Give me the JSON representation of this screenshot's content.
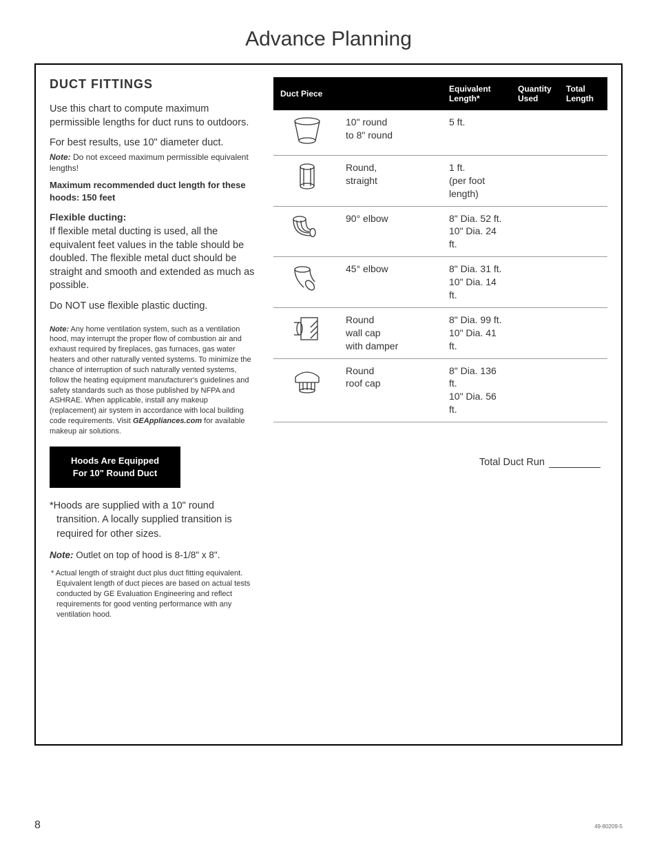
{
  "page": {
    "title": "Advance Planning",
    "number": "8",
    "doc_code": "49-80209-5"
  },
  "left": {
    "heading": "DUCT FITTINGS",
    "intro": "Use this chart to compute maximum permissible lengths for duct runs to outdoors.",
    "best": "For best results, use 10\" diameter duct.",
    "note1_label": "Note:",
    "note1": " Do not exceed maximum permissible equivalent lengths!",
    "max_rec": "Maximum recommended duct length for these hoods: 150 feet",
    "flex_heading": "Flexible ducting:",
    "flex_body": "If flexible metal ducting is used, all the equivalent feet values in the table should be doubled. The flexible metal duct should be straight and smooth and extended as much as possible.",
    "no_plastic": "Do NOT use flexible plastic ducting.",
    "long_note_label": "Note:",
    "long_note": " Any home ventilation system, such as a ventilation hood, may interrupt the proper flow of combustion air and exhaust required by fireplaces, gas furnaces, gas water heaters and other naturally vented systems. To minimize the chance of interruption of such naturally vented systems, follow the heating equipment manufacturer's guidelines and safety standards such as those published by NFPA and ASHRAE. When applicable, install any makeup (replacement) air system in accordance with local building code requirements. Visit ",
    "long_note_site": "GEAppliances.com",
    "long_note_tail": " for available makeup air solutions.",
    "black_box_l1": "Hoods Are Equipped",
    "black_box_l2": "For 10\" Round Duct",
    "supplied": "*Hoods are supplied with a 10\" round transition. A locally supplied transition is required for other sizes.",
    "outlet_label": "Note:",
    "outlet": " Outlet on top of hood is 8-1/8\" x 8\".",
    "footnote": "* Actual length of straight duct plus duct fitting equivalent. Equivalent length of duct pieces are based on actual tests conducted by GE Evaluation Engineering and reflect requirements for good venting performance with any ventilation hood."
  },
  "table": {
    "headers": {
      "piece": "Duct Piece",
      "desc": "",
      "equiv": "Equivalent Length*",
      "qty": "Quantity Used",
      "total": "Total Length"
    },
    "rows": [
      {
        "desc": "10\" round\nto 8\" round",
        "equiv": "5 ft."
      },
      {
        "desc": "Round,\nstraight",
        "equiv": "1 ft.\n(per foot\nlength)"
      },
      {
        "desc": "90° elbow",
        "equiv": "8\" Dia. 52 ft.\n10\" Dia. 24 ft."
      },
      {
        "desc": "45° elbow",
        "equiv": "8\" Dia. 31 ft.\n10\" Dia. 14 ft."
      },
      {
        "desc": "Round\nwall cap\nwith damper",
        "equiv": "8\" Dia. 99 ft.\n10\" Dia. 41 ft."
      },
      {
        "desc": "Round\nroof cap",
        "equiv": "8\" Dia. 136 ft.\n10\" Dia. 56 ft."
      }
    ],
    "total_label": "Total Duct Run"
  },
  "colors": {
    "text": "#333333",
    "header_bg": "#000000",
    "header_text": "#ffffff",
    "border": "#999999",
    "frame": "#000000"
  }
}
